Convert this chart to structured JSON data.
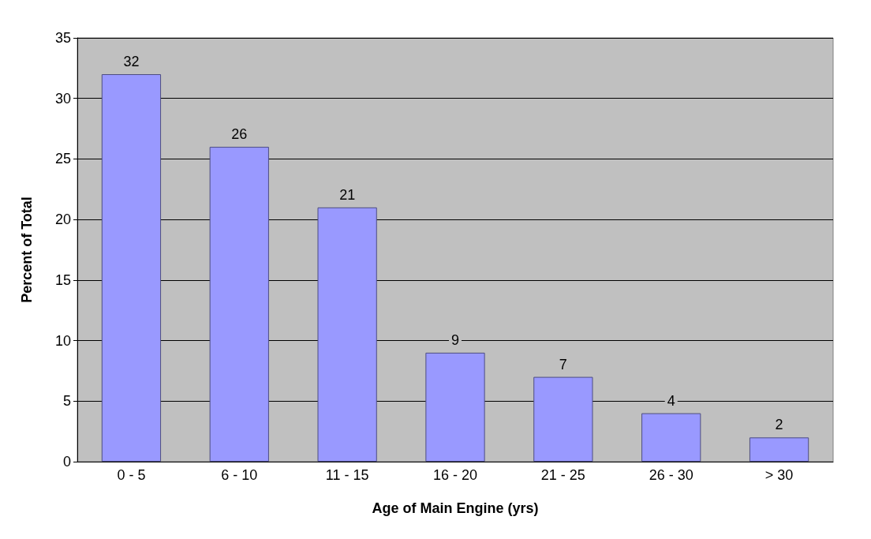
{
  "chart_data": {
    "type": "bar",
    "xlabel": "Age of Main Engine (yrs)",
    "ylabel": "Percent of Total",
    "categories": [
      "0 - 5",
      "6 - 10",
      "11 - 15",
      "16 - 20",
      "21 - 25",
      "26 - 30",
      "> 30"
    ],
    "values": [
      32,
      26,
      21,
      9,
      7,
      4,
      2
    ],
    "color": "#9999ff",
    "ylim": [
      0,
      35
    ],
    "yticks": [
      0,
      5,
      10,
      15,
      20,
      25,
      30,
      35
    ],
    "grid": "y",
    "data_labels": true
  }
}
